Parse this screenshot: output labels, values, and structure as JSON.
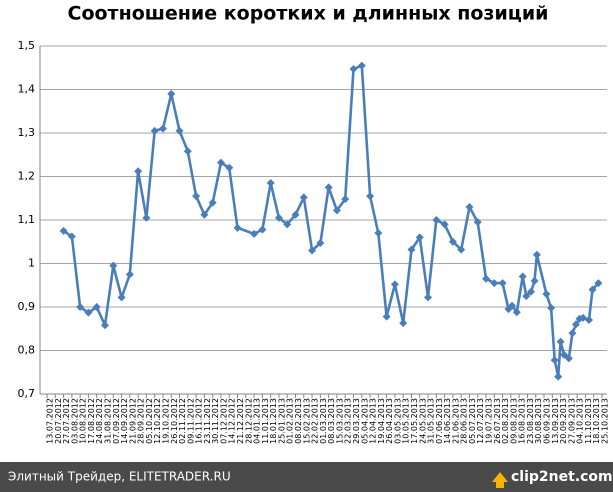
{
  "chart_data": {
    "type": "line",
    "title": "Соотношение коротких и длинных позиций",
    "x": [
      "27.07.2012",
      "03.08.2012",
      "10.08.2012",
      "17.08.2012",
      "24.08.2012",
      "31.08.2012",
      "07.09.2012",
      "14.09.2012",
      "21.09.2012",
      "28.09.2012",
      "05.10.2012",
      "12.10.2012",
      "19.10.2012",
      "26.10.2012",
      "02.11.2012",
      "09.11.2012",
      "16.11.2012",
      "23.11.2012",
      "30.11.2012",
      "07.12.2012",
      "14.12.2012",
      "21.12.2012",
      "04.01.2013",
      "11.01.2013",
      "18.01.2013",
      "25.01.2013",
      "01.02.2013",
      "08.02.2013",
      "15.02.2013",
      "22.02.2013",
      "01.03.2013",
      "08.03.2013",
      "15.03.2013",
      "22.03.2013",
      "29.03.2013",
      "05.04.2013",
      "12.04.2013",
      "19.04.2013",
      "26.04.2013",
      "03.05.2013",
      "10.05.2013",
      "17.05.2013",
      "24.05.2013",
      "31.05.2013",
      "07.06.2013",
      "14.06.2013",
      "21.06.2013",
      "28.06.2013",
      "05.07.2013",
      "12.07.2013",
      "19.07.2013",
      "26.07.2013",
      "02.08.2013",
      "07.08.2013",
      "10.08.2013",
      "14.08.2013",
      "19.08.2013",
      "22.08.2013",
      "26.08.2013",
      "29.08.2013",
      "31.08.2013",
      "08.09.2013",
      "12.09.2013",
      "15.09.2013",
      "18.09.2013",
      "20.09.2013",
      "23.09.2013",
      "27.09.2013",
      "30.09.2013",
      "03.10.2013",
      "06.10.2013",
      "09.10.2013",
      "14.10.2013",
      "17.10.2013",
      "22.10.2013"
    ],
    "series": [
      {
        "name": "Соотношение",
        "color": "#4a7ebb",
        "values": [
          1.075,
          1.062,
          0.9,
          0.887,
          0.9,
          0.858,
          0.995,
          0.922,
          0.975,
          1.212,
          1.105,
          1.305,
          1.31,
          1.39,
          1.305,
          1.258,
          1.155,
          1.112,
          1.14,
          1.232,
          1.22,
          1.082,
          1.068,
          1.078,
          1.185,
          1.105,
          1.09,
          1.112,
          1.152,
          1.03,
          1.047,
          1.175,
          1.122,
          1.148,
          1.447,
          1.455,
          1.155,
          1.07,
          0.878,
          0.952,
          0.863,
          1.032,
          1.06,
          0.922,
          1.1,
          1.09,
          1.05,
          1.032,
          1.13,
          1.095,
          0.965,
          0.955,
          0.955,
          0.895,
          0.903,
          0.888,
          0.97,
          0.925,
          0.935,
          0.96,
          1.02,
          0.93,
          0.898,
          0.778,
          0.74,
          0.82,
          0.79,
          0.782,
          0.84,
          0.86,
          0.873,
          0.875,
          0.87,
          0.94,
          0.955
        ]
      }
    ],
    "xlim": [
      "13.07.2012",
      "25.10.2013"
    ],
    "xticks": [
      "13.07.2012",
      "20.07.2012",
      "27.07.2012",
      "03.08.2012",
      "10.08.2012",
      "17.08.2012",
      "24.08.2012",
      "31.08.2012",
      "07.09.2012",
      "14.09.2012",
      "21.09.2012",
      "28.09.2012",
      "05.10.2012",
      "12.10.2012",
      "19.10.2012",
      "26.10.2012",
      "02.11.2012",
      "09.11.2012",
      "16.11.2012",
      "23.11.2012",
      "30.11.2012",
      "07.12.2012",
      "14.12.2012",
      "21.12.2012",
      "28.12.2012",
      "04.01.2013",
      "11.01.2013",
      "18.01.2013",
      "25.01.2013",
      "01.02.2013",
      "08.02.2013",
      "15.02.2013",
      "22.02.2013",
      "01.03.2013",
      "08.03.2013",
      "15.03.2013",
      "22.03.2013",
      "29.03.2013",
      "05.04.2013",
      "12.04.2013",
      "19.04.2013",
      "26.04.2013",
      "03.05.2013",
      "10.05.2013",
      "17.05.2013",
      "24.05.2013",
      "31.05.2013",
      "07.06.2013",
      "14.06.2013",
      "21.06.2013",
      "28.06.2013",
      "05.07.2013",
      "12.07.2013",
      "19.07.2013",
      "26.07.2013",
      "02.08.2013",
      "09.08.2013",
      "16.08.2013",
      "23.08.2013",
      "30.08.2013",
      "06.09.2013",
      "13.09.2013",
      "20.09.2013",
      "27.09.2013",
      "04.10.2013",
      "11.10.2013",
      "18.10.2013",
      "25.10.2013"
    ],
    "ylim": [
      0.7,
      1.5
    ],
    "yticks": [
      {
        "value": 0.7,
        "label": "0,7"
      },
      {
        "value": 0.8,
        "label": "0,8"
      },
      {
        "value": 0.9,
        "label": "0,9"
      },
      1,
      {
        "value": 1.1,
        "label": "1,1"
      },
      {
        "value": 1.2,
        "label": "1,2"
      },
      {
        "value": 1.3,
        "label": "1,3"
      },
      {
        "value": 1.4,
        "label": "1,4"
      },
      {
        "value": 1.5,
        "label": "1,5"
      }
    ],
    "grid": true
  },
  "footer": {
    "text": "Элитный Трейдер, ELITETRADER.RU",
    "logo": "clip2net.com"
  }
}
